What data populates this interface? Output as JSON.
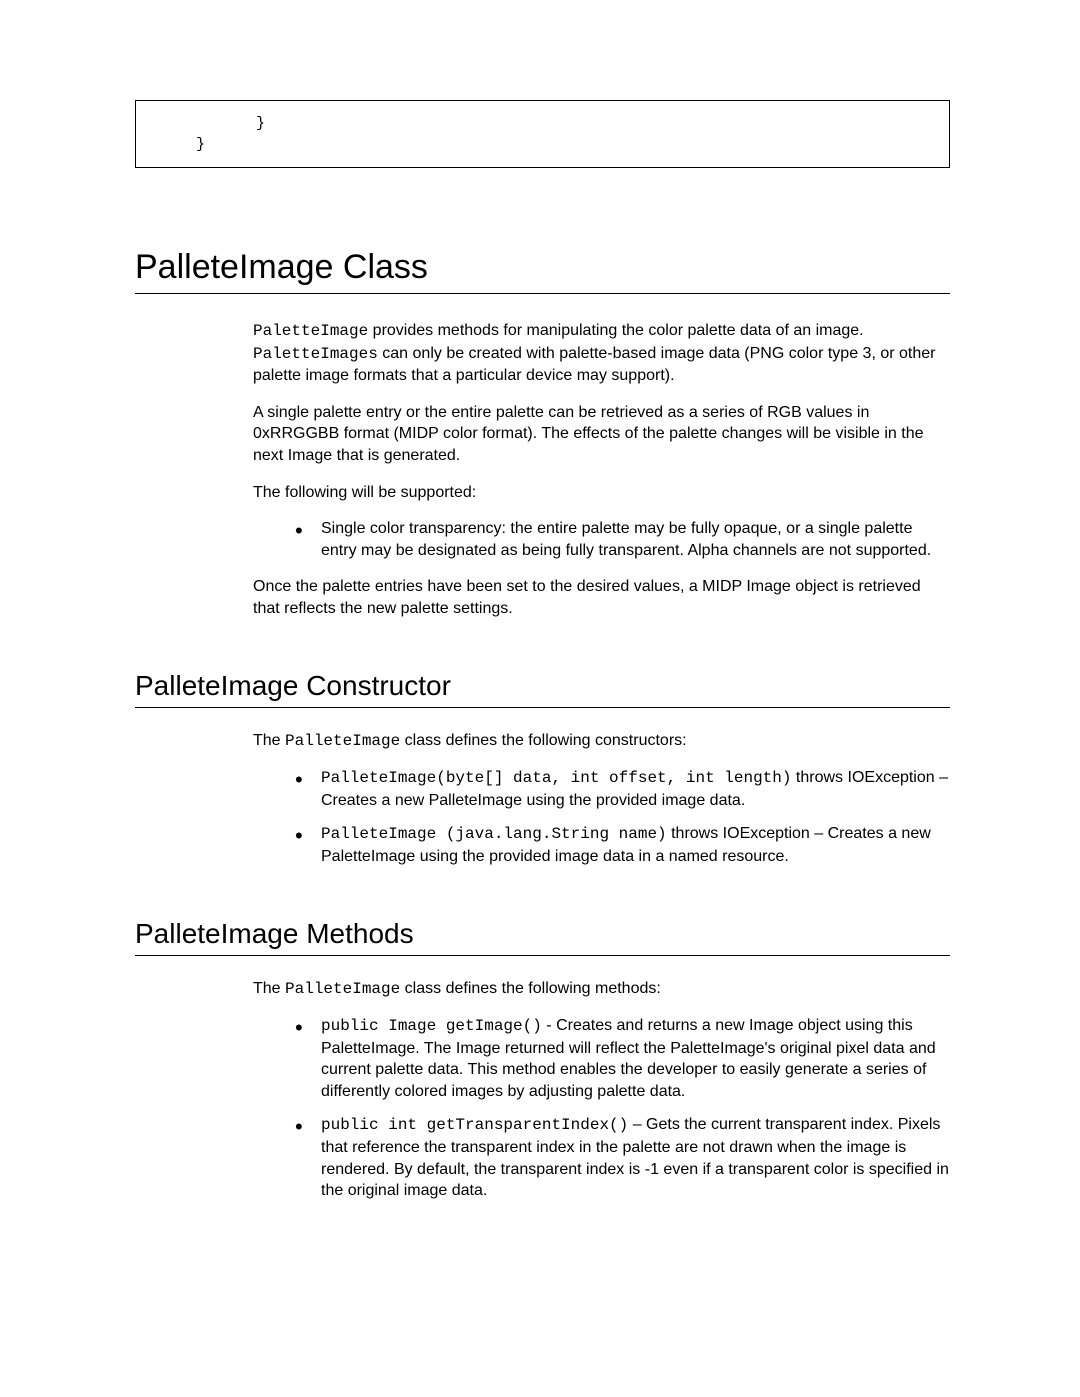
{
  "codebox": {
    "line1": "}",
    "line2": "}"
  },
  "section1": {
    "title": "PalleteImage Class",
    "p1_code1": "PaletteImage",
    "p1_part1": " provides methods for manipulating the color palette data of an image. ",
    "p1_code2": "PaletteImages",
    "p1_part2": " can only be created with palette-based image data (PNG color type 3, or other palette image formats that a particular device may support).",
    "p2": "A single palette entry or the entire palette can be retrieved as a series of RGB values in 0xRRGGBB format (MIDP color format). The effects of the palette changes will be visible in the next Image that is generated.",
    "p3": "The following will be supported:",
    "bullet1": "Single color transparency: the entire palette may be fully opaque, or a single palette entry may be designated as being fully transparent. Alpha channels are not supported.",
    "p4": "Once the palette entries have been set to the desired values, a MIDP Image object is retrieved that reflects the new palette settings."
  },
  "section2": {
    "title": "PalleteImage Constructor",
    "intro_pre": "The ",
    "intro_code": "PalleteImage",
    "intro_post": " class defines the following constructors:",
    "b1_code": "PalleteImage(byte[] data, int offset, int length)",
    "b1_text": " throws IOException  –  Creates a new PalleteImage using the provided image data.",
    "b2_code": "PalleteImage (java.lang.String name)",
    "b2_text": " throws IOException  – Creates a new PaletteImage using the provided image data in a named resource."
  },
  "section3": {
    "title": "PalleteImage Methods",
    "intro_pre": "The ",
    "intro_code": "PalleteImage",
    "intro_post": " class defines the following methods:",
    "b1_code": "public Image getImage()",
    "b1_text": "  - Creates and returns a new Image object using this PaletteImage. The Image returned will reflect the PaletteImage's original pixel data and current palette data. This method enables the developer to easily generate a series of differently colored images by adjusting palette data.",
    "b2_code": "public int getTransparentIndex()",
    "b2_text": " – Gets the current transparent index. Pixels that reference the transparent index in the palette are not drawn when the image is rendered. By default, the transparent index is -1 even if a transparent color is specified in the original image data."
  }
}
